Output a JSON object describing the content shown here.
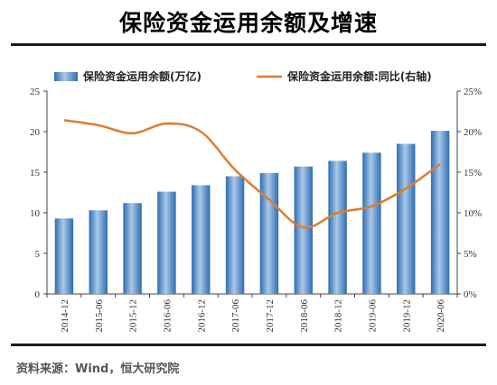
{
  "title": "保险资金运用余额及增速",
  "source": "资料来源：Wind，恒大研究院",
  "colors": {
    "bar": "#3d7fc4",
    "bar_light": "#a9c9ea",
    "line": "#e07b2a"
  },
  "chart_data": {
    "type": "bar+line",
    "categories": [
      "2014-12",
      "2015-06",
      "2015-12",
      "2016-06",
      "2016-12",
      "2017-06",
      "2017-12",
      "2018-06",
      "2018-12",
      "2019-06",
      "2019-12",
      "2020-06"
    ],
    "series": [
      {
        "name": "保险资金运用余额(万亿)",
        "type": "bar",
        "axis": "left",
        "values": [
          9.3,
          10.3,
          11.2,
          12.6,
          13.4,
          14.5,
          14.9,
          15.7,
          16.4,
          17.4,
          18.5,
          20.1
        ]
      },
      {
        "name": "保险资金运用余额:同比(右轴)",
        "type": "line",
        "axis": "right",
        "values": [
          21.4,
          20.8,
          19.8,
          21.0,
          20.0,
          15.3,
          11.6,
          8.2,
          10.0,
          10.8,
          13.0,
          16.0
        ]
      }
    ],
    "ylim_left": [
      0,
      25
    ],
    "yticks_left": [
      "0",
      "5",
      "10",
      "15",
      "20",
      "25"
    ],
    "ylim_right": [
      0,
      25
    ],
    "yticks_right": [
      "0%",
      "5%",
      "10%",
      "15%",
      "20%",
      "25%"
    ],
    "legend_position": "top",
    "grid": false
  }
}
